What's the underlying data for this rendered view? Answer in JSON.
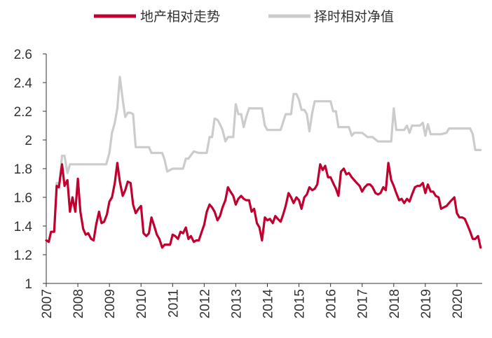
{
  "chart_data": {
    "type": "line",
    "title": "",
    "xlabel": "",
    "ylabel": "",
    "ylim": [
      1,
      2.6
    ],
    "y_ticks": [
      "1",
      "1.2",
      "1.4",
      "1.6",
      "1.8",
      "2",
      "2.2",
      "2.4",
      "2.6"
    ],
    "xlim": [
      2007.0,
      2020.8
    ],
    "x_ticks": [
      "2007",
      "2008",
      "2009",
      "2010",
      "2011",
      "2012",
      "2013",
      "2014",
      "2015",
      "2016",
      "2017",
      "2018",
      "2019",
      "2020"
    ],
    "grid": false,
    "legend_position": "top-center",
    "series": [
      {
        "name": "地产相对走势",
        "color": "#c0002e",
        "x": [
          2007.0,
          2007.08,
          2007.15,
          2007.25,
          2007.33,
          2007.4,
          2007.5,
          2007.58,
          2007.67,
          2007.75,
          2007.83,
          2007.92,
          2008.0,
          2008.08,
          2008.17,
          2008.25,
          2008.33,
          2008.42,
          2008.5,
          2008.58,
          2008.67,
          2008.75,
          2008.83,
          2008.92,
          2009.0,
          2009.08,
          2009.17,
          2009.25,
          2009.33,
          2009.42,
          2009.5,
          2009.58,
          2009.67,
          2009.75,
          2009.83,
          2009.92,
          2010.0,
          2010.08,
          2010.17,
          2010.25,
          2010.33,
          2010.42,
          2010.5,
          2010.58,
          2010.67,
          2010.75,
          2010.83,
          2010.92,
          2011.0,
          2011.08,
          2011.17,
          2011.25,
          2011.33,
          2011.42,
          2011.5,
          2011.58,
          2011.67,
          2011.75,
          2011.83,
          2011.92,
          2012.0,
          2012.08,
          2012.17,
          2012.25,
          2012.33,
          2012.42,
          2012.5,
          2012.58,
          2012.67,
          2012.75,
          2012.83,
          2012.92,
          2013.0,
          2013.08,
          2013.17,
          2013.25,
          2013.33,
          2013.42,
          2013.5,
          2013.58,
          2013.67,
          2013.75,
          2013.83,
          2013.92,
          2014.0,
          2014.08,
          2014.17,
          2014.25,
          2014.33,
          2014.42,
          2014.5,
          2014.58,
          2014.67,
          2014.75,
          2014.83,
          2014.92,
          2015.0,
          2015.08,
          2015.17,
          2015.25,
          2015.33,
          2015.42,
          2015.5,
          2015.58,
          2015.67,
          2015.75,
          2015.83,
          2015.92,
          2016.0,
          2016.08,
          2016.17,
          2016.25,
          2016.33,
          2016.42,
          2016.5,
          2016.58,
          2016.67,
          2016.75,
          2016.83,
          2016.92,
          2017.0,
          2017.08,
          2017.17,
          2017.25,
          2017.33,
          2017.42,
          2017.5,
          2017.58,
          2017.67,
          2017.75,
          2017.83,
          2017.92,
          2018.0,
          2018.08,
          2018.17,
          2018.25,
          2018.33,
          2018.42,
          2018.5,
          2018.58,
          2018.67,
          2018.75,
          2018.83,
          2018.92,
          2019.0,
          2019.08,
          2019.17,
          2019.25,
          2019.33,
          2019.42,
          2019.5,
          2019.58,
          2019.67,
          2019.75,
          2019.83,
          2019.92,
          2020.0,
          2020.08,
          2020.17,
          2020.25,
          2020.33,
          2020.42,
          2020.5,
          2020.58,
          2020.67,
          2020.75
        ],
        "values": [
          1.3,
          1.29,
          1.36,
          1.36,
          1.68,
          1.67,
          1.83,
          1.68,
          1.72,
          1.5,
          1.6,
          1.5,
          1.73,
          1.5,
          1.38,
          1.34,
          1.35,
          1.31,
          1.3,
          1.41,
          1.5,
          1.42,
          1.43,
          1.48,
          1.57,
          1.6,
          1.7,
          1.84,
          1.71,
          1.61,
          1.65,
          1.71,
          1.7,
          1.55,
          1.49,
          1.52,
          1.54,
          1.35,
          1.33,
          1.35,
          1.46,
          1.4,
          1.34,
          1.31,
          1.25,
          1.27,
          1.27,
          1.27,
          1.34,
          1.33,
          1.31,
          1.36,
          1.35,
          1.39,
          1.31,
          1.33,
          1.29,
          1.3,
          1.3,
          1.36,
          1.41,
          1.5,
          1.55,
          1.53,
          1.5,
          1.44,
          1.47,
          1.53,
          1.58,
          1.67,
          1.64,
          1.61,
          1.55,
          1.59,
          1.61,
          1.59,
          1.58,
          1.58,
          1.5,
          1.52,
          1.42,
          1.39,
          1.3,
          1.46,
          1.44,
          1.45,
          1.42,
          1.47,
          1.45,
          1.43,
          1.48,
          1.54,
          1.63,
          1.6,
          1.56,
          1.6,
          1.58,
          1.52,
          1.6,
          1.62,
          1.67,
          1.65,
          1.66,
          1.69,
          1.83,
          1.79,
          1.82,
          1.74,
          1.74,
          1.7,
          1.66,
          1.61,
          1.78,
          1.8,
          1.76,
          1.77,
          1.74,
          1.72,
          1.7,
          1.68,
          1.64,
          1.67,
          1.69,
          1.69,
          1.67,
          1.63,
          1.62,
          1.63,
          1.67,
          1.65,
          1.84,
          1.72,
          1.68,
          1.63,
          1.58,
          1.59,
          1.56,
          1.59,
          1.57,
          1.62,
          1.67,
          1.68,
          1.68,
          1.7,
          1.63,
          1.69,
          1.64,
          1.64,
          1.61,
          1.6,
          1.52,
          1.53,
          1.54,
          1.56,
          1.58,
          1.6,
          1.49,
          1.46,
          1.46,
          1.45,
          1.41,
          1.36,
          1.31,
          1.31,
          1.33,
          1.25
        ]
      },
      {
        "name": "择时相对净值",
        "color": "#cccccc",
        "x": [
          2007.0,
          2007.08,
          2007.15,
          2007.25,
          2007.33,
          2007.42,
          2007.5,
          2007.58,
          2007.67,
          2007.75,
          2007.83,
          2008.0,
          2008.5,
          2008.9,
          2009.0,
          2009.08,
          2009.17,
          2009.25,
          2009.33,
          2009.42,
          2009.5,
          2009.58,
          2009.67,
          2009.75,
          2009.83,
          2009.92,
          2010.0,
          2010.1,
          2010.25,
          2010.33,
          2010.5,
          2010.67,
          2010.75,
          2010.83,
          2011.0,
          2011.17,
          2011.25,
          2011.33,
          2011.42,
          2011.5,
          2011.67,
          2011.83,
          2011.92,
          2012.0,
          2012.08,
          2012.17,
          2012.25,
          2012.33,
          2012.42,
          2012.5,
          2012.58,
          2012.67,
          2012.75,
          2012.83,
          2012.92,
          2013.0,
          2013.08,
          2013.17,
          2013.25,
          2013.33,
          2013.42,
          2013.5,
          2013.67,
          2013.75,
          2013.83,
          2013.92,
          2014.0,
          2014.25,
          2014.33,
          2014.42,
          2014.58,
          2014.67,
          2014.75,
          2014.83,
          2014.92,
          2015.0,
          2015.08,
          2015.17,
          2015.25,
          2015.33,
          2015.42,
          2015.5,
          2015.67,
          2015.83,
          2016.0,
          2016.08,
          2016.17,
          2016.25,
          2016.33,
          2016.58,
          2016.67,
          2016.75,
          2016.83,
          2017.0,
          2017.17,
          2017.25,
          2017.33,
          2017.5,
          2017.58,
          2017.67,
          2017.75,
          2017.92,
          2018.0,
          2018.08,
          2018.25,
          2018.33,
          2018.42,
          2018.5,
          2018.58,
          2018.67,
          2018.83,
          2018.92,
          2019.0,
          2019.08,
          2019.17,
          2019.42,
          2019.5,
          2019.67,
          2019.75,
          2019.83,
          2020.0,
          2020.17,
          2020.33,
          2020.42,
          2020.5,
          2020.58,
          2020.75
        ],
        "values": [
          1.3,
          1.29,
          1.36,
          1.36,
          1.7,
          1.7,
          1.89,
          1.89,
          1.77,
          1.83,
          1.83,
          1.83,
          1.83,
          1.83,
          1.91,
          2.05,
          2.12,
          2.22,
          2.44,
          2.28,
          2.16,
          2.19,
          2.19,
          2.18,
          1.95,
          1.95,
          1.95,
          1.95,
          1.95,
          1.91,
          1.91,
          1.91,
          1.86,
          1.78,
          1.8,
          1.8,
          1.8,
          1.8,
          1.87,
          1.87,
          1.92,
          1.91,
          1.91,
          1.91,
          1.91,
          2.02,
          2.02,
          2.15,
          2.14,
          2.11,
          2.07,
          1.99,
          2.02,
          2.02,
          2.02,
          2.25,
          2.18,
          2.18,
          2.09,
          2.16,
          2.22,
          2.22,
          2.22,
          2.22,
          2.22,
          2.1,
          2.07,
          2.07,
          2.07,
          2.07,
          2.18,
          2.18,
          2.18,
          2.32,
          2.32,
          2.28,
          2.21,
          2.21,
          2.18,
          2.06,
          2.19,
          2.27,
          2.27,
          2.27,
          2.27,
          2.2,
          2.2,
          2.09,
          2.09,
          2.09,
          2.03,
          2.05,
          2.05,
          2.05,
          2.02,
          2.02,
          2.02,
          1.99,
          1.99,
          1.99,
          1.99,
          1.99,
          2.22,
          2.07,
          2.07,
          2.07,
          2.1,
          2.05,
          2.1,
          2.1,
          2.1,
          2.12,
          2.03,
          2.11,
          2.04,
          2.04,
          2.04,
          2.05,
          2.08,
          2.08,
          2.08,
          2.08,
          2.08,
          2.08,
          2.04,
          1.93,
          1.93
        ]
      }
    ]
  }
}
